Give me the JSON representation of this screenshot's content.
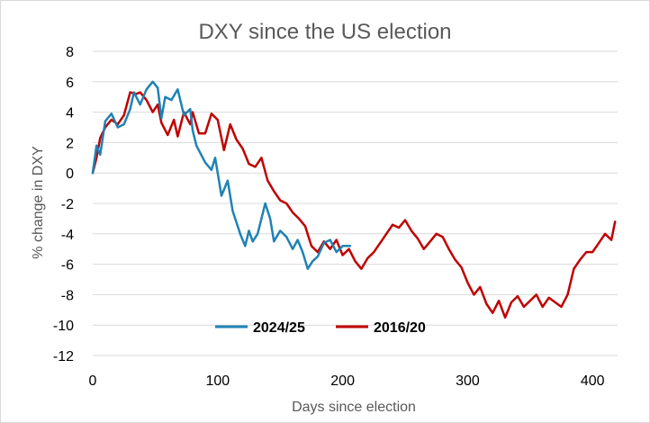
{
  "chart_data": {
    "type": "line",
    "title": "DXY since the US election",
    "xlabel": "Days since election",
    "ylabel": "% change in DXY",
    "xlim": [
      0,
      420
    ],
    "ylim": [
      -12,
      8
    ],
    "x_ticks": [
      0,
      100,
      200,
      300,
      400
    ],
    "y_ticks": [
      8,
      6,
      4,
      2,
      0,
      -2,
      -4,
      -6,
      -8,
      -10,
      -12
    ],
    "grid": "horizontal",
    "legend_position": "bottom-inside",
    "series": [
      {
        "name": "2024/25",
        "color": "#1f82b4",
        "x": [
          0,
          3,
          6,
          10,
          15,
          20,
          25,
          30,
          33,
          38,
          43,
          48,
          52,
          55,
          58,
          63,
          68,
          73,
          78,
          80,
          83,
          88,
          90,
          95,
          98,
          103,
          108,
          112,
          118,
          122,
          125,
          128,
          132,
          135,
          138,
          142,
          145,
          150,
          155,
          160,
          164,
          168,
          172,
          176,
          180,
          185,
          190,
          195,
          200,
          206
        ],
        "y": [
          0,
          1.8,
          1.2,
          3.4,
          3.9,
          3.0,
          3.2,
          4.2,
          5.3,
          4.5,
          5.5,
          6.0,
          5.6,
          3.6,
          5.0,
          4.8,
          5.5,
          3.8,
          4.2,
          2.8,
          1.8,
          1.0,
          0.7,
          0.2,
          1.0,
          -1.5,
          -0.5,
          -2.5,
          -4.0,
          -4.8,
          -3.8,
          -4.5,
          -4.0,
          -3.0,
          -2.0,
          -3.0,
          -4.5,
          -3.8,
          -4.2,
          -5.0,
          -4.4,
          -5.2,
          -6.3,
          -5.8,
          -5.5,
          -4.6,
          -4.4,
          -5.2,
          -4.8,
          -4.8
        ]
      },
      {
        "name": "2016/20",
        "color": "#c00000",
        "x": [
          0,
          3,
          6,
          10,
          15,
          20,
          25,
          30,
          35,
          38,
          43,
          48,
          52,
          55,
          60,
          65,
          68,
          73,
          78,
          80,
          85,
          90,
          95,
          100,
          105,
          110,
          115,
          120,
          125,
          130,
          135,
          140,
          145,
          150,
          155,
          160,
          165,
          170,
          175,
          180,
          185,
          190,
          195,
          200,
          205,
          210,
          215,
          220,
          225,
          230,
          235,
          240,
          245,
          250,
          255,
          260,
          265,
          270,
          275,
          280,
          285,
          290,
          295,
          300,
          305,
          310,
          315,
          320,
          325,
          330,
          335,
          340,
          345,
          350,
          355,
          360,
          365,
          370,
          375,
          380,
          385,
          390,
          395,
          400,
          405,
          410,
          415,
          418
        ],
        "y": [
          0,
          1.0,
          2.3,
          3.0,
          3.5,
          3.2,
          3.8,
          5.3,
          5.2,
          5.3,
          4.8,
          4.0,
          4.5,
          3.3,
          2.5,
          3.5,
          2.4,
          4.0,
          3.2,
          4.0,
          2.6,
          2.6,
          3.9,
          3.5,
          1.5,
          3.2,
          2.2,
          1.6,
          0.6,
          0.4,
          1.0,
          -0.5,
          -1.2,
          -1.8,
          -2.0,
          -2.6,
          -3.0,
          -3.5,
          -4.8,
          -5.2,
          -4.5,
          -5.0,
          -4.4,
          -5.4,
          -5.0,
          -5.8,
          -6.3,
          -5.6,
          -5.2,
          -4.6,
          -4.0,
          -3.4,
          -3.6,
          -3.1,
          -3.8,
          -4.3,
          -5.0,
          -4.5,
          -4.0,
          -4.2,
          -5.0,
          -5.7,
          -6.2,
          -7.2,
          -8.0,
          -7.5,
          -8.6,
          -9.2,
          -8.4,
          -9.5,
          -8.5,
          -8.1,
          -8.8,
          -8.4,
          -8.0,
          -8.8,
          -8.2,
          -8.5,
          -8.8,
          -8.0,
          -6.3,
          -5.7,
          -5.2,
          -5.2,
          -4.6,
          -4.0,
          -4.4,
          -3.2
        ]
      }
    ]
  }
}
